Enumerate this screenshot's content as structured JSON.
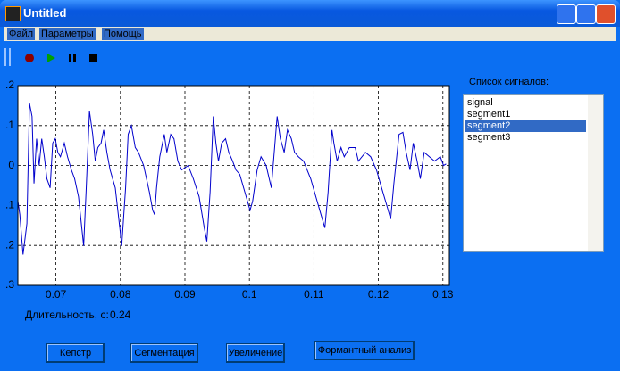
{
  "window": {
    "title": "Untitled"
  },
  "menu": [
    "Файл",
    "Параметры",
    "Помощь"
  ],
  "chart_data": {
    "type": "line",
    "x": [
      0.0641,
      0.0644,
      0.0649,
      0.0655,
      0.0659,
      0.0663,
      0.0666,
      0.067,
      0.0674,
      0.0678,
      0.0682,
      0.0686,
      0.0691,
      0.0695,
      0.0699,
      0.0703,
      0.0707,
      0.0713,
      0.0718,
      0.0724,
      0.0729,
      0.0735,
      0.0743,
      0.0747,
      0.0752,
      0.0757,
      0.0761,
      0.0765,
      0.077,
      0.0774,
      0.0779,
      0.0784,
      0.0792,
      0.0799,
      0.0802,
      0.0808,
      0.0812,
      0.0817,
      0.0823,
      0.0828,
      0.0836,
      0.0845,
      0.085,
      0.0853,
      0.0856,
      0.0861,
      0.0868,
      0.0872,
      0.0878,
      0.0883,
      0.0889,
      0.0895,
      0.0905,
      0.0913,
      0.0922,
      0.093,
      0.0934,
      0.0939,
      0.0944,
      0.0948,
      0.0952,
      0.0957,
      0.0963,
      0.0968,
      0.0974,
      0.0979,
      0.0985,
      0.0993,
      0.1001,
      0.1005,
      0.1012,
      0.1018,
      0.1026,
      0.1034,
      0.1043,
      0.1048,
      0.1054,
      0.1059,
      0.1065,
      0.107,
      0.1076,
      0.1084,
      0.1095,
      0.1103,
      0.1111,
      0.1117,
      0.1122,
      0.1128,
      0.1131,
      0.1136,
      0.1142,
      0.1147,
      0.1155,
      0.1164,
      0.1169,
      0.118,
      0.1188,
      0.1197,
      0.1205,
      0.1213,
      0.1219,
      0.1224,
      0.1232,
      0.1238,
      0.1243,
      0.1249,
      0.1254,
      0.126,
      0.1265,
      0.1271,
      0.1279,
      0.1287,
      0.1296,
      0.1301,
      0.1305
    ],
    "series": [
      {
        "color": "#0000cc",
        "values": [
          -0.089,
          -0.123,
          -0.223,
          -0.145,
          0.156,
          0.123,
          -0.045,
          0.067,
          0,
          0.067,
          0.022,
          -0.033,
          -0.056,
          0.056,
          0.067,
          0.033,
          0.022,
          0.056,
          0.022,
          -0.011,
          -0.033,
          -0.078,
          -0.201,
          -0.056,
          0.136,
          0.078,
          0.011,
          0.045,
          0.056,
          0.089,
          0.033,
          -0.011,
          -0.056,
          -0.156,
          -0.201,
          -0.056,
          0.078,
          0.1,
          0.045,
          0.033,
          0,
          -0.067,
          -0.112,
          -0.123,
          -0.056,
          0.022,
          0.078,
          0.033,
          0.078,
          0.067,
          0.011,
          -0.011,
          0,
          -0.033,
          -0.078,
          -0.156,
          -0.19,
          -0.067,
          0.123,
          0.056,
          0.011,
          0.056,
          0.067,
          0.033,
          0.011,
          -0.011,
          -0.022,
          -0.067,
          -0.112,
          -0.089,
          -0.011,
          0.022,
          0,
          -0.056,
          0.123,
          0.067,
          0.033,
          0.089,
          0.067,
          0.033,
          0.022,
          0.011,
          -0.033,
          -0.078,
          -0.123,
          -0.156,
          -0.067,
          0.089,
          0.056,
          0.011,
          0.045,
          0.022,
          0.045,
          0.045,
          0.011,
          0.033,
          0.022,
          -0.011,
          -0.056,
          -0.1,
          -0.134,
          -0.045,
          0.078,
          0.083,
          0.033,
          -0.011,
          0.056,
          0.011,
          -0.033,
          0.033,
          0.022,
          0.011,
          0.022,
          0,
          0.004
        ]
      }
    ],
    "xlim": [
      0.0641,
      0.131
    ],
    "xticks": [
      0.07,
      0.08,
      0.09,
      0.1,
      0.11,
      0.12,
      0.13
    ],
    "ylim": [
      -0.3,
      0.2
    ],
    "yticks": [
      {
        "value": 0.2,
        "label": ".2"
      },
      {
        "value": 0.1,
        "label": ".1"
      },
      0,
      {
        "value": -0.1,
        "label": ".1"
      },
      {
        "value": -0.2,
        "label": ".2"
      },
      {
        "value": -0.3,
        "label": ".3"
      }
    ],
    "grid": true
  },
  "signal_list": {
    "label": "Список сигналов:",
    "items": [
      "signal",
      "segment1",
      "segment2",
      "segment3"
    ],
    "selected": 2
  },
  "duration": {
    "label": "Длительность, с:",
    "value": 0.24
  },
  "buttons": [
    "Кепстр",
    "Сегментация",
    "Увеличение",
    "Формантный анализ"
  ]
}
